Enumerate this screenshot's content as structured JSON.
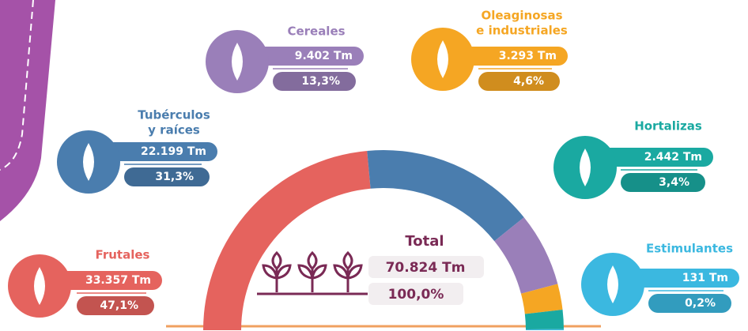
{
  "chart_data": {
    "type": "half-donut",
    "categories": [
      "Frutales",
      [
        "Tubérculos",
        "y raíces"
      ],
      "Cereales",
      [
        "Oleaginosas",
        "e industriales"
      ],
      "Hortalizas",
      "Estimulantes"
    ],
    "values": [
      33357,
      22199,
      9402,
      3293,
      2442,
      131
    ],
    "value_labels": [
      "33.357  Tm",
      "22.199 Tm",
      "9.402 Tm",
      "3.293 Tm",
      "2.442 Tm",
      "131 Tm"
    ],
    "shares": [
      47.1,
      31.3,
      13.3,
      4.6,
      3.4,
      0.2
    ],
    "share_labels": [
      "47,1%",
      "31,3%",
      "13,3%",
      "4,6%",
      "3,4%",
      "0,2%"
    ],
    "colors": [
      "#e5635e",
      "#4a7dae",
      "#9a7fb9",
      "#f5a623",
      "#1aa9a1",
      "#3bb8e0"
    ],
    "total": {
      "title": "Total",
      "amount": "70.824 Tm",
      "share": "100,0%"
    }
  }
}
